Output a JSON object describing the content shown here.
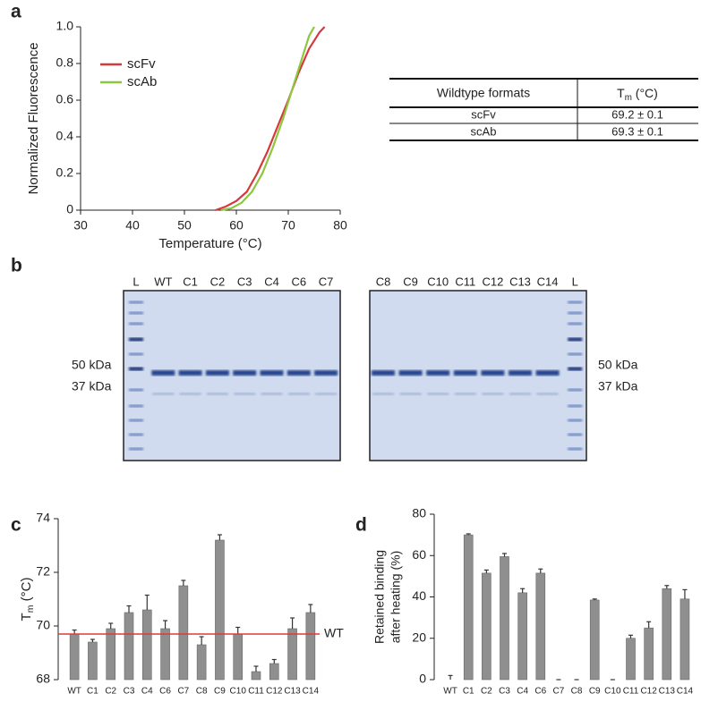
{
  "panel_labels": [
    "a",
    "b",
    "c",
    "d"
  ],
  "chart_data": [
    {
      "type": "line",
      "y_label": "Normalized Fluorescence",
      "x_label": "Temperature (°C)",
      "xlim": [
        30,
        80
      ],
      "xticks": [
        30,
        40,
        50,
        60,
        70,
        80
      ],
      "ylim": [
        0,
        1
      ],
      "yticks": [
        0,
        0.2,
        0.4,
        0.6,
        0.8,
        {
          "value": 1,
          "label": "1.0"
        }
      ],
      "series": [
        {
          "name": "scFv",
          "color": "#d43a3c",
          "x": [
            56,
            58,
            60,
            62,
            64,
            66,
            68,
            70,
            72,
            74,
            76,
            77
          ],
          "values": [
            0,
            0.02,
            0.05,
            0.1,
            0.2,
            0.32,
            0.46,
            0.6,
            0.75,
            0.88,
            0.97,
            1
          ]
        },
        {
          "name": "scAb",
          "color": "#8dc63f",
          "x": [
            57,
            59,
            61,
            63,
            65,
            67,
            69,
            71,
            73,
            74,
            75
          ],
          "values": [
            0,
            0.01,
            0.04,
            0.1,
            0.2,
            0.34,
            0.5,
            0.68,
            0.86,
            0.95,
            1
          ]
        }
      ]
    },
    {
      "type": "bar",
      "y_label": {
        "main": "T",
        "sub": "m",
        "rest": " (°C)"
      },
      "categories": [
        "WT",
        "C1",
        "C2",
        "C3",
        "C4",
        "C6",
        "C7",
        "C8",
        "C9",
        "C10",
        "C11",
        "C12",
        "C13",
        "C14"
      ],
      "series": [
        {
          "color": "#8f8f8f",
          "values": [
            69.7,
            69.4,
            69.9,
            70.5,
            70.6,
            69.9,
            71.5,
            69.3,
            73.2,
            69.7,
            68.3,
            68.6,
            69.9,
            70.5
          ],
          "errors": [
            0.15,
            0.1,
            0.2,
            0.25,
            0.55,
            0.3,
            0.2,
            0.3,
            0.2,
            0.25,
            0.2,
            0.15,
            0.4,
            0.3
          ]
        }
      ],
      "ylim": [
        68,
        74
      ],
      "yticks": [
        68,
        70,
        72,
        74
      ],
      "reference": {
        "label": "WT",
        "value": 69.7,
        "color": "#e03a3a"
      }
    },
    {
      "type": "bar",
      "y_label": [
        "Retained binding",
        "after heating (%)"
      ],
      "categories": [
        "WT",
        "C1",
        "C2",
        "C3",
        "C4",
        "C6",
        "C7",
        "C8",
        "C9",
        "C10",
        "C11",
        "C12",
        "C13",
        "C14"
      ],
      "series": [
        {
          "color": "#8f8f8f",
          "values": [
            0,
            70,
            51.5,
            59.5,
            42,
            51.5,
            0,
            0,
            38.5,
            0,
            20,
            25,
            44,
            39
          ],
          "errors": [
            2,
            0.5,
            1.5,
            1.5,
            2,
            2,
            0,
            0,
            0.5,
            0,
            1.5,
            3,
            1.5,
            4.5
          ]
        }
      ],
      "ylim": [
        0,
        80
      ],
      "yticks": [
        0,
        20,
        40,
        60,
        80
      ]
    }
  ],
  "table": {
    "header": [
      "Wildtype formats",
      {
        "main": "T",
        "sub": "m",
        "rest": " (°C)"
      }
    ],
    "rows": [
      [
        "scFv",
        "69.2 ± 0.1"
      ],
      [
        "scAb",
        "69.3 ± 0.1"
      ]
    ]
  },
  "gel": {
    "left_lanes": [
      "L",
      "WT",
      "C1",
      "C2",
      "C3",
      "C4",
      "C6",
      "C7"
    ],
    "right_lanes": [
      "C8",
      "C9",
      "C10",
      "C11",
      "C12",
      "C13",
      "C14",
      "L"
    ],
    "markers": [
      "50 kDa",
      "37 kDa"
    ]
  }
}
